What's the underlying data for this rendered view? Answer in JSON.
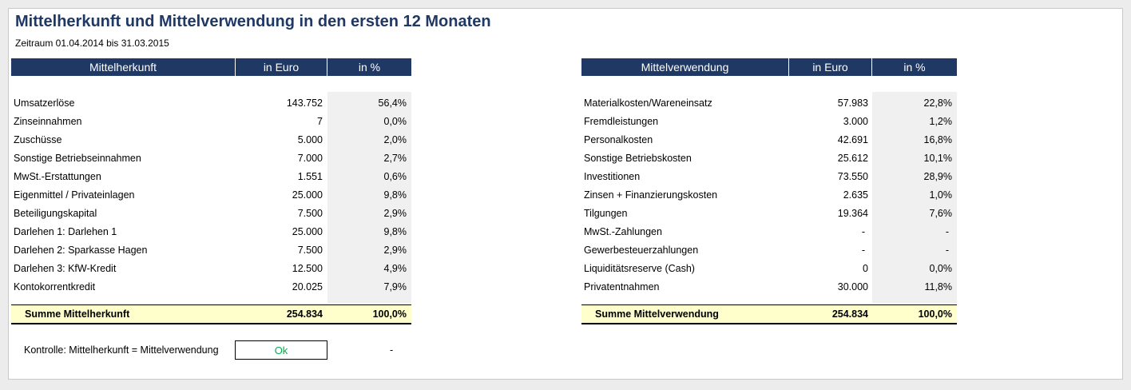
{
  "title": "Mittelherkunft und Mittelverwendung in den ersten 12 Monaten",
  "period": "Zeitraum 01.04.2014 bis 31.03.2015",
  "left_table": {
    "headers": [
      "Mittelherkunft",
      "in Euro",
      "in %"
    ],
    "rows": [
      {
        "label": "Umsatzerlöse",
        "euro": "143.752",
        "pct": "56,4%"
      },
      {
        "label": "Zinseinnahmen",
        "euro": "7",
        "pct": "0,0%"
      },
      {
        "label": "Zuschüsse",
        "euro": "5.000",
        "pct": "2,0%"
      },
      {
        "label": "Sonstige Betriebseinnahmen",
        "euro": "7.000",
        "pct": "2,7%"
      },
      {
        "label": "MwSt.-Erstattungen",
        "euro": "1.551",
        "pct": "0,6%"
      },
      {
        "label": "Eigenmittel / Privateinlagen",
        "euro": "25.000",
        "pct": "9,8%"
      },
      {
        "label": "Beteiligungskapital",
        "euro": "7.500",
        "pct": "2,9%"
      },
      {
        "label": "Darlehen 1: Darlehen 1",
        "euro": "25.000",
        "pct": "9,8%"
      },
      {
        "label": "Darlehen 2: Sparkasse Hagen",
        "euro": "7.500",
        "pct": "2,9%"
      },
      {
        "label": "Darlehen 3: KfW-Kredit",
        "euro": "12.500",
        "pct": "4,9%"
      },
      {
        "label": "Kontokorrentkredit",
        "euro": "20.025",
        "pct": "7,9%"
      }
    ],
    "sum": {
      "label": "Summe Mittelherkunft",
      "euro": "254.834",
      "pct": "100,0%"
    }
  },
  "right_table": {
    "headers": [
      "Mittelverwendung",
      "in Euro",
      "in %"
    ],
    "rows": [
      {
        "label": "Materialkosten/Wareneinsatz",
        "euro": "57.983",
        "pct": "22,8%"
      },
      {
        "label": "Fremdleistungen",
        "euro": "3.000",
        "pct": "1,2%"
      },
      {
        "label": "Personalkosten",
        "euro": "42.691",
        "pct": "16,8%"
      },
      {
        "label": "Sonstige Betriebskosten",
        "euro": "25.612",
        "pct": "10,1%"
      },
      {
        "label": "Investitionen",
        "euro": "73.550",
        "pct": "28,9%"
      },
      {
        "label": "Zinsen + Finanzierungskosten",
        "euro": "2.635",
        "pct": "1,0%"
      },
      {
        "label": "Tilgungen",
        "euro": "19.364",
        "pct": "7,6%"
      },
      {
        "label": "MwSt.-Zahlungen",
        "euro": "-",
        "pct": "-"
      },
      {
        "label": "Gewerbesteuerzahlungen",
        "euro": "-",
        "pct": "-"
      },
      {
        "label": "Liquiditätsreserve (Cash)",
        "euro": "0",
        "pct": "0,0%"
      },
      {
        "label": "Privatentnahmen",
        "euro": "30.000",
        "pct": "11,8%"
      }
    ],
    "sum": {
      "label": "Summe Mittelverwendung",
      "euro": "254.834",
      "pct": "100,0%"
    }
  },
  "kontrolle": {
    "label": "Kontrolle: Mittelherkunft = Mittelverwendung",
    "status": "Ok",
    "difference": "-"
  },
  "colors": {
    "header_bg": "#1f3864",
    "title": "#1f3864",
    "sum_bg": "#ffffcc",
    "pct_column_bg": "#f0f0f0",
    "ok_text": "#00b050"
  }
}
